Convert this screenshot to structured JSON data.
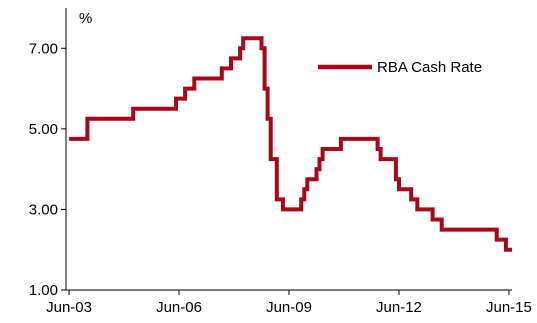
{
  "chart_data": {
    "type": "line",
    "title": "",
    "xlabel": "",
    "ylabel": "%",
    "ylim": [
      1,
      8
    ],
    "xlim": [
      "2003-06",
      "2015-07"
    ],
    "grid": false,
    "legend_position": "top-right",
    "y_ticks": [
      "1.00",
      "3.00",
      "5.00",
      "7.00"
    ],
    "x_ticks": [
      {
        "label": "Jun-03",
        "date": "2003-06"
      },
      {
        "label": "Jun-06",
        "date": "2006-06"
      },
      {
        "label": "Jun-09",
        "date": "2009-06"
      },
      {
        "label": "Jun-12",
        "date": "2012-06"
      },
      {
        "label": "Jun-15",
        "date": "2015-06"
      }
    ],
    "series": [
      {
        "name": "RBA Cash Rate",
        "color": "#a8071a",
        "step": true,
        "points": [
          [
            "2003-06",
            4.75
          ],
          [
            "2003-12",
            5.25
          ],
          [
            "2005-03",
            5.5
          ],
          [
            "2006-05",
            5.75
          ],
          [
            "2006-08",
            6.0
          ],
          [
            "2006-11",
            6.25
          ],
          [
            "2007-08",
            6.5
          ],
          [
            "2007-11",
            6.75
          ],
          [
            "2008-02",
            7.0
          ],
          [
            "2008-03",
            7.25
          ],
          [
            "2008-09",
            7.0
          ],
          [
            "2008-10",
            6.0
          ],
          [
            "2008-11",
            5.25
          ],
          [
            "2008-12",
            4.25
          ],
          [
            "2009-02",
            3.25
          ],
          [
            "2009-04",
            3.0
          ],
          [
            "2009-10",
            3.25
          ],
          [
            "2009-11",
            3.5
          ],
          [
            "2009-12",
            3.75
          ],
          [
            "2010-03",
            4.0
          ],
          [
            "2010-04",
            4.25
          ],
          [
            "2010-05",
            4.5
          ],
          [
            "2010-11",
            4.75
          ],
          [
            "2011-11",
            4.5
          ],
          [
            "2011-12",
            4.25
          ],
          [
            "2012-05",
            3.75
          ],
          [
            "2012-06",
            3.5
          ],
          [
            "2012-10",
            3.25
          ],
          [
            "2012-12",
            3.0
          ],
          [
            "2013-05",
            2.75
          ],
          [
            "2013-08",
            2.5
          ],
          [
            "2015-02",
            2.25
          ],
          [
            "2015-05",
            2.0
          ],
          [
            "2015-07",
            2.0
          ]
        ]
      }
    ]
  }
}
